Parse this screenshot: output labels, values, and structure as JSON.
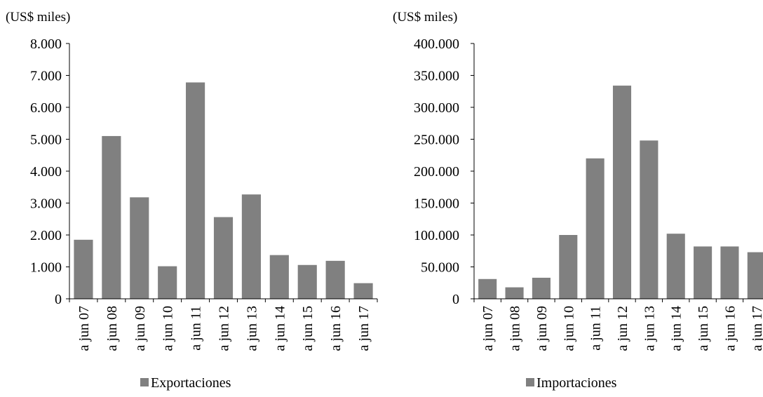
{
  "chart_data": [
    {
      "type": "bar",
      "unit_label": "(US$ miles)",
      "categories": [
        "a jun 07",
        "a jun 08",
        "a jun 09",
        "a jun 10",
        "a jun 11",
        "a jun 12",
        "a jun 13",
        "a jun 14",
        "a jun 15",
        "a jun 16",
        "a jun 17"
      ],
      "series": [
        {
          "name": "Exportaciones",
          "values": [
            1850,
            5100,
            3180,
            1020,
            6780,
            2560,
            3270,
            1370,
            1060,
            1190,
            490
          ]
        }
      ],
      "ylim": [
        0,
        8000
      ],
      "yticks": [
        "0",
        "1.000",
        "2.000",
        "3.000",
        "4.000",
        "5.000",
        "6.000",
        "7.000",
        "8.000"
      ],
      "grid": false,
      "legend_position": "bottom",
      "bar_color": "#808080"
    },
    {
      "type": "bar",
      "unit_label": "(US$ miles)",
      "categories": [
        "a jun 07",
        "a jun 08",
        "a jun 09",
        "a jun 10",
        "a jun 11",
        "a jun 12",
        "a jun 13",
        "a jun 14",
        "a jun 15",
        "a jun 16",
        "a jun 17"
      ],
      "series": [
        {
          "name": "Importaciones",
          "values": [
            31000,
            18000,
            33000,
            100000,
            220000,
            334000,
            248000,
            102000,
            82000,
            82000,
            73000
          ]
        }
      ],
      "ylim": [
        0,
        400000
      ],
      "yticks": [
        "0",
        "50.000",
        "100.000",
        "150.000",
        "200.000",
        "250.000",
        "300.000",
        "350.000",
        "400.000"
      ],
      "grid": false,
      "legend_position": "bottom",
      "bar_color": "#808080"
    }
  ]
}
